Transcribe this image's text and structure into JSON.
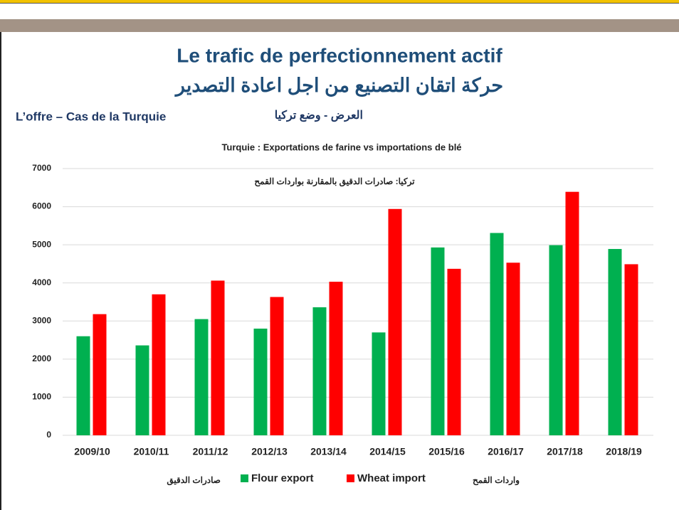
{
  "slide": {
    "title": "Le trafic de perfectionnement actif",
    "title_ar": "حركة اتقان التصنيع من اجل اعادة التصدير",
    "subtitle": "L’offre – Cas de la Turquie",
    "subtitle_ar": "العرض  - وضع تركيا"
  },
  "chart_data": {
    "type": "bar",
    "title": "Turquie : Exportations de farine vs importations de blé",
    "subtitle": "تركيا: صادرات الدقيق بالمقارنة بواردات القمح",
    "categories": [
      "2009/10",
      "2010/11",
      "2011/12",
      "2012/13",
      "2013/14",
      "2014/15",
      "2015/16",
      "2016/17",
      "2017/18",
      "2018/19"
    ],
    "series": [
      {
        "name": "Flour export",
        "name_ar": "صادرات الدقيق",
        "color": "#00b050",
        "values": [
          2600,
          2360,
          3050,
          2800,
          3360,
          2700,
          4930,
          5310,
          4990,
          4890
        ]
      },
      {
        "name": "Wheat import",
        "name_ar": "واردات القمح",
        "color": "#ff0000",
        "values": [
          3180,
          3700,
          4060,
          3630,
          4030,
          5940,
          4370,
          4530,
          6390,
          4490
        ]
      }
    ],
    "ylim": [
      0,
      7000
    ],
    "yticks": [
      0,
      1000,
      2000,
      3000,
      4000,
      5000,
      6000,
      7000
    ],
    "grid": true,
    "legend": "bottom"
  }
}
